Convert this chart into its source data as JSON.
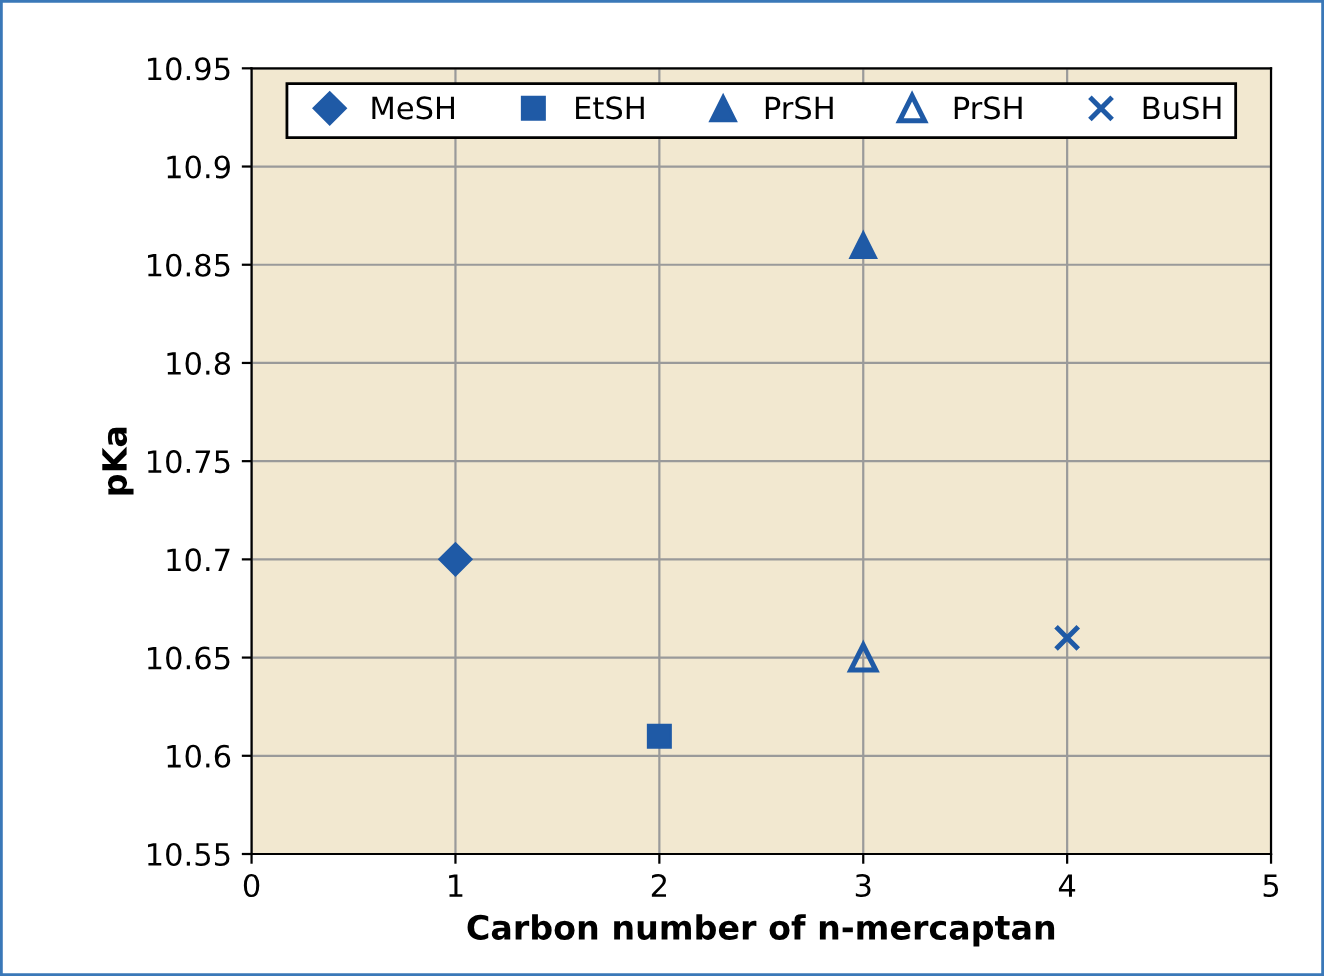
{
  "chart_data": {
    "type": "scatter",
    "xlabel": "Carbon number of n-mercaptan",
    "ylabel": "pKa",
    "xlim": [
      0,
      5
    ],
    "xticks": [
      0,
      1,
      2,
      3,
      4,
      5
    ],
    "ylim": [
      10.55,
      10.95
    ],
    "yticks": [
      10.55,
      10.6,
      10.65,
      10.7,
      10.75,
      10.8,
      10.85,
      10.9,
      10.95
    ],
    "grid": true,
    "legend": "top",
    "series": [
      {
        "name": "MeSH",
        "color": "#1f5aa6",
        "marker": "diamond",
        "x": [
          1
        ],
        "values": [
          10.7
        ]
      },
      {
        "name": "EtSH",
        "color": "#1f5aa6",
        "marker": "square",
        "x": [
          2
        ],
        "values": [
          10.61
        ]
      },
      {
        "name": "PrSH",
        "color": "#1f5aa6",
        "marker": "triangle",
        "x": [
          3
        ],
        "values": [
          10.86
        ]
      },
      {
        "name": "PrSH",
        "color": "#1f5aa6",
        "marker": "triangle-open",
        "x": [
          3
        ],
        "values": [
          10.65
        ]
      },
      {
        "name": "BuSH",
        "color": "#1f5aa6",
        "marker": "cross",
        "x": [
          4
        ],
        "values": [
          10.66
        ]
      }
    ]
  }
}
